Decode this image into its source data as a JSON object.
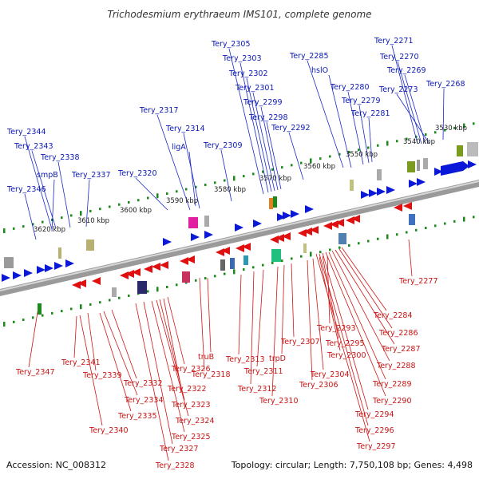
{
  "title": "Trichodesmium erythraeum IMS101, complete genome",
  "footer": {
    "accession": "Accession: NC_008312",
    "topology": "Topology: circular; Length: 7,750,108 bp; Genes: 4,498"
  },
  "colors": {
    "forward": "#0a18d8",
    "reverse": "#e01010",
    "tick": "#1a8a1a",
    "backbone": "#888888"
  },
  "kbp_ticks": [
    "3530 kbp",
    "3540 kbp",
    "3550 kbp",
    "3560 kbp",
    "3570 kbp",
    "3580 kbp",
    "3590 kbp",
    "3600 kbp",
    "3610 kbp",
    "3620 kbp"
  ],
  "blue_labels": [
    "Tery_2271",
    "Tery_2270",
    "Tery_2269",
    "Tery_2273",
    "Tery_2268",
    "Tery_2305",
    "Tery_2303",
    "Tery_2302",
    "Tery_2301",
    "Tery_2299",
    "Tery_2298",
    "Tery_2292",
    "Tery_2285",
    "hslO",
    "Tery_2280",
    "Tery_2279",
    "Tery_2281",
    "Tery_2317",
    "Tery_2314",
    "ligA",
    "Tery_2309",
    "Tery_2320",
    "Tery_2344",
    "Tery_2343",
    "Tery_2338",
    "smpB",
    "Tery_2337",
    "Tery_2346"
  ],
  "red_labels": [
    "Tery_2277",
    "Tery_2284",
    "Tery_2286",
    "Tery_2287",
    "Tery_2288",
    "Tery_2289",
    "Tery_2290",
    "Tery_2294",
    "Tery_2296",
    "Tery_2297",
    "Tery_2293",
    "Tery_2295",
    "Tery_2300",
    "Tery_2304",
    "Tery_2306",
    "Tery_2307",
    "trpD",
    "Tery_2310",
    "Tery_2311",
    "Tery_2312",
    "Tery_2313",
    "truB",
    "Tery_2318",
    "Tery_2326",
    "Tery_2322",
    "Tery_2323",
    "Tery_2324",
    "Tery_2325",
    "Tery_2327",
    "Tery_2328",
    "Tery_2332",
    "Tery_2334",
    "Tery_2335",
    "Tery_2339",
    "Tery_2340",
    "Tery_2341",
    "Tery_2347"
  ]
}
